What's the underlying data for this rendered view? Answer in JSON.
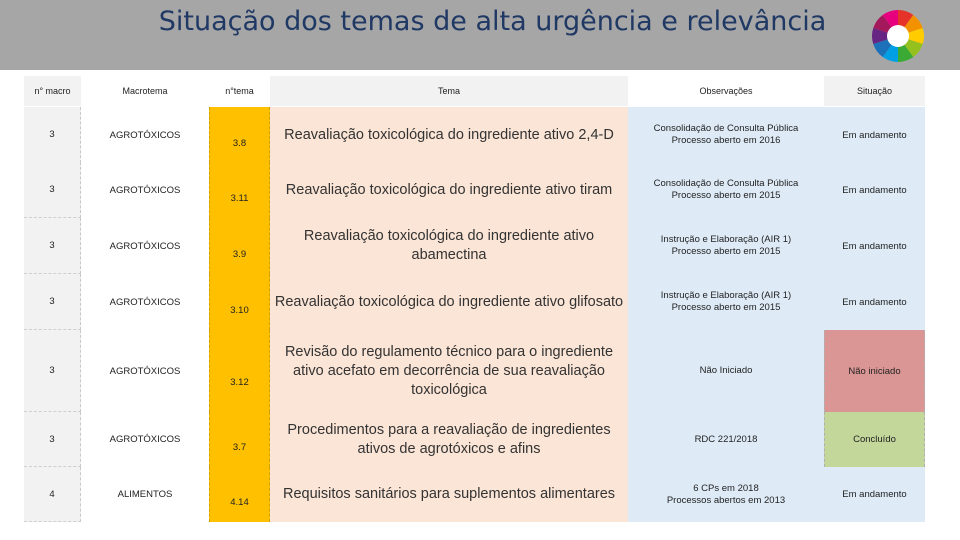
{
  "title": "Situação dos temas de alta urgência e relevância",
  "logo": {
    "icon": "color-wheel-logo-icon"
  },
  "headers": {
    "n_macro": "n° macro",
    "macrotema": "Macrotema",
    "n_tema": "n°tema",
    "tema": "Tema",
    "observacoes": "Observações",
    "situacao": "Situação"
  },
  "rows": [
    {
      "n_macro": "3",
      "macrotema": "AGROTÓXICOS",
      "n_tema": "3.8",
      "tema": "Reavaliação toxicológica do ingrediente ativo 2,4-D",
      "obs_line1": "Consolidação de Consulta Pública",
      "obs_line2": "Processo aberto em 2016",
      "situacao": "Em andamento"
    },
    {
      "n_macro": "3",
      "macrotema": "AGROTÓXICOS",
      "n_tema": "3.11",
      "tema": "Reavaliação toxicológica do ingrediente ativo tiram",
      "obs_line1": "Consolidação de Consulta Pública",
      "obs_line2": "Processo aberto em 2015",
      "situacao": "Em andamento"
    },
    {
      "n_macro": "3",
      "macrotema": "AGROTÓXICOS",
      "n_tema": "3.9",
      "tema": "Reavaliação toxicológica do ingrediente ativo abamectina",
      "obs_line1": "Instrução e Elaboração (AIR 1)",
      "obs_line2": "Processo aberto em 2015",
      "situacao": "Em andamento"
    },
    {
      "n_macro": "3",
      "macrotema": "AGROTÓXICOS",
      "n_tema": "3.10",
      "tema": "Reavaliação toxicológica do ingrediente ativo glifosato",
      "obs_line1": "Instrução e Elaboração (AIR 1)",
      "obs_line2": "Processo aberto em 2015",
      "situacao": "Em andamento"
    },
    {
      "n_macro": "3",
      "macrotema": "AGROTÓXICOS",
      "n_tema": "3.12",
      "tema": "Revisão do regulamento técnico para o ingrediente ativo acefato em decorrência de sua reavaliação toxicológica",
      "obs_line1": "Não Iniciado",
      "obs_line2": "",
      "situacao": "Não iniciado"
    },
    {
      "n_macro": "3",
      "macrotema": "AGROTÓXICOS",
      "n_tema": "3.7",
      "tema": "Procedimentos para a reavaliação de ingredientes ativos de agrotóxicos e afins",
      "obs_line1": "RDC 221/2018",
      "obs_line2": "",
      "situacao": "Concluído"
    },
    {
      "n_macro": "4",
      "macrotema": "ALIMENTOS",
      "n_tema": "4.14",
      "tema": "Requisitos sanitários para suplementos alimentares",
      "obs_line1": "6 CPs em 2018",
      "obs_line2": "Processos abertos em 2013",
      "situacao": "Em andamento"
    }
  ],
  "status_colors": {
    "Em andamento": "#deebf7",
    "Não iniciado": "#da9694",
    "Concluído": "#c4d79b"
  }
}
